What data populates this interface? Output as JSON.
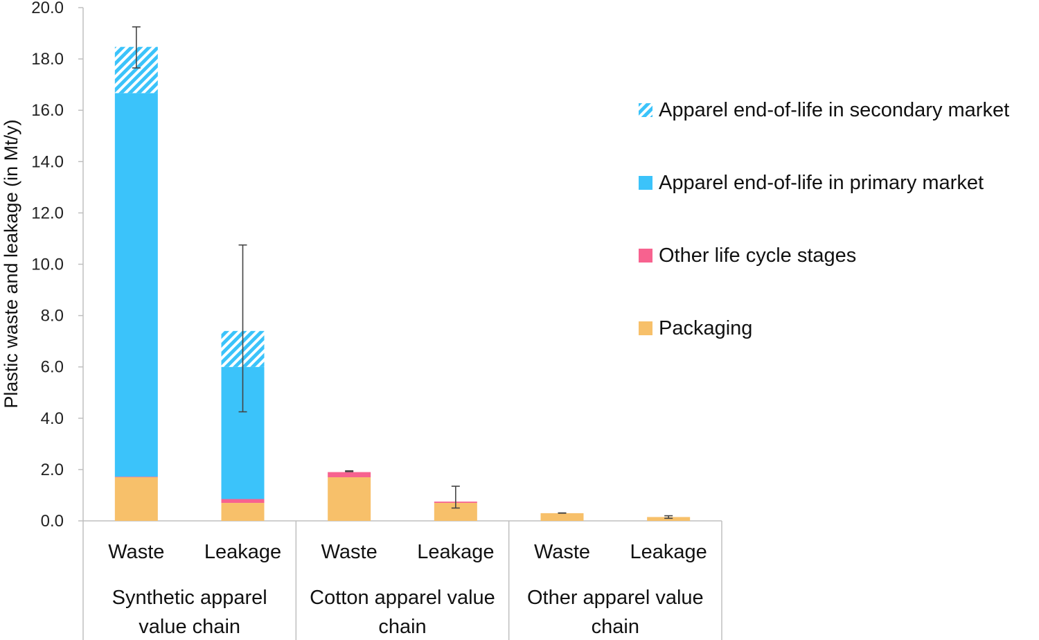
{
  "chart_data": {
    "type": "bar",
    "stacked": true,
    "ylabel": "Plastic waste and leakage (in Mt/y)",
    "ylim": [
      0,
      20
    ],
    "yticks": [
      "0.0",
      "2.0",
      "4.0",
      "6.0",
      "8.0",
      "10.0",
      "12.0",
      "14.0",
      "16.0",
      "18.0",
      "20.0"
    ],
    "categories": [
      "Waste",
      "Leakage",
      "Waste",
      "Leakage",
      "Waste",
      "Leakage"
    ],
    "groups": [
      {
        "label_lines": [
          "Synthetic apparel",
          "value chain"
        ],
        "span": [
          0,
          1
        ]
      },
      {
        "label_lines": [
          "Cotton apparel value",
          "chain"
        ],
        "span": [
          2,
          3
        ]
      },
      {
        "label_lines": [
          "Other apparel value",
          "chain"
        ],
        "span": [
          4,
          5
        ]
      }
    ],
    "series": [
      {
        "name": "Packaging",
        "color": "#F7C06A",
        "pattern": "solid",
        "values": [
          1.7,
          0.7,
          1.7,
          0.7,
          0.3,
          0.15
        ]
      },
      {
        "name": "Other life cycle stages",
        "color": "#F7628F",
        "pattern": "solid",
        "values": [
          0.02,
          0.15,
          0.2,
          0.05,
          0.0,
          0.0
        ]
      },
      {
        "name": "Apparel end-of-life in primary market",
        "color": "#3BC3FA",
        "pattern": "solid",
        "values": [
          14.95,
          5.15,
          0.0,
          0.0,
          0.0,
          0.0
        ]
      },
      {
        "name": "Apparel end-of-life in secondary market",
        "color": "#3BC3FA",
        "pattern": "hatched",
        "values": [
          1.8,
          1.4,
          0.0,
          0.0,
          0.0,
          0.0
        ]
      }
    ],
    "error_bars": [
      {
        "low": 17.65,
        "high": 19.25
      },
      {
        "low": 4.25,
        "high": 10.75
      },
      {
        "low": 1.92,
        "high": 1.95
      },
      {
        "low": 0.5,
        "high": 1.35
      },
      {
        "low": 0.3,
        "high": 0.31
      },
      {
        "low": 0.1,
        "high": 0.2
      }
    ],
    "legend": {
      "placement": "right",
      "entries": [
        "Apparel end-of-life in secondary market",
        "Apparel end-of-life in primary market",
        "Other life cycle stages",
        "Packaging"
      ]
    },
    "grid": false
  }
}
